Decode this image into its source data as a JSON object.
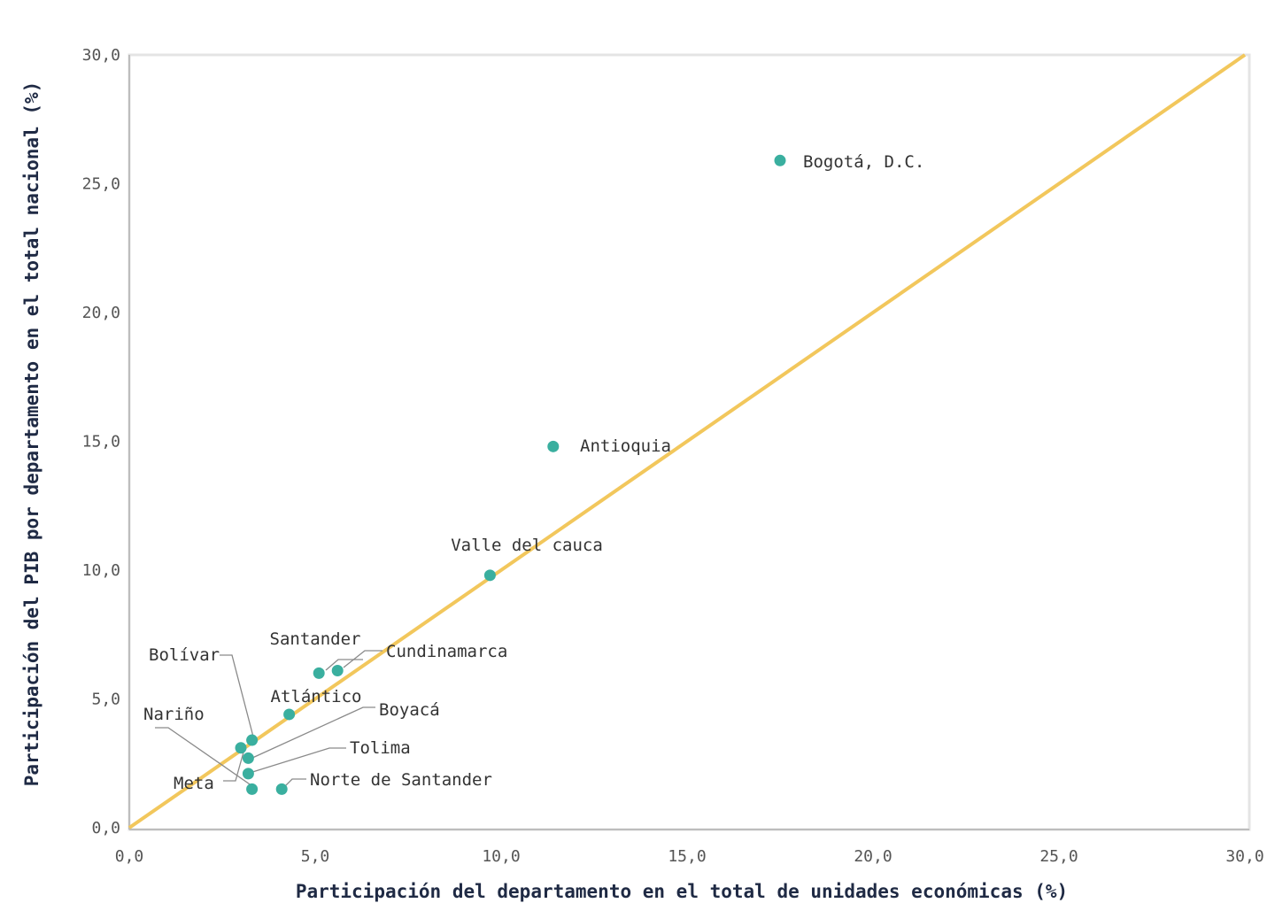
{
  "chart_data": {
    "type": "scatter",
    "xlabel": "Participación del departamento en el total de unidades económicas (%)",
    "ylabel": "Participación del PIB por departamento en el total nacional (%)",
    "xlim": [
      0,
      30
    ],
    "ylim": [
      0,
      30
    ],
    "x_ticks": [
      "0,0",
      "5,0",
      "10,0",
      "15,0",
      "20,0",
      "25,0",
      "30,0"
    ],
    "y_ticks": [
      "0,0",
      "5,0",
      "10,0",
      "15,0",
      "20,0",
      "25,0",
      "30,0"
    ],
    "grid": false,
    "reference_line": {
      "from": [
        0,
        0
      ],
      "to": [
        30,
        30
      ],
      "color": "#f2c75c"
    },
    "point_color": "#3aaf9f",
    "points": [
      {
        "label": "Bogotá, D.C.",
        "x": 17.5,
        "y": 25.9
      },
      {
        "label": "Antioquia",
        "x": 11.4,
        "y": 14.8
      },
      {
        "label": "Valle del cauca",
        "x": 9.7,
        "y": 9.8
      },
      {
        "label": "Cundinamarca",
        "x": 5.6,
        "y": 6.1
      },
      {
        "label": "Santander",
        "x": 5.1,
        "y": 6.0
      },
      {
        "label": "Atlántico",
        "x": 4.3,
        "y": 4.4
      },
      {
        "label": "Bolívar",
        "x": 3.3,
        "y": 3.4
      },
      {
        "label": "Nariño",
        "x": 3.0,
        "y": 3.1
      },
      {
        "label": "Boyacá",
        "x": 3.2,
        "y": 2.7
      },
      {
        "label": "Tolima",
        "x": 3.2,
        "y": 2.1
      },
      {
        "label": "Meta",
        "x": 3.3,
        "y": 1.5
      },
      {
        "label": "Norte de Santander",
        "x": 4.1,
        "y": 1.5
      }
    ]
  }
}
